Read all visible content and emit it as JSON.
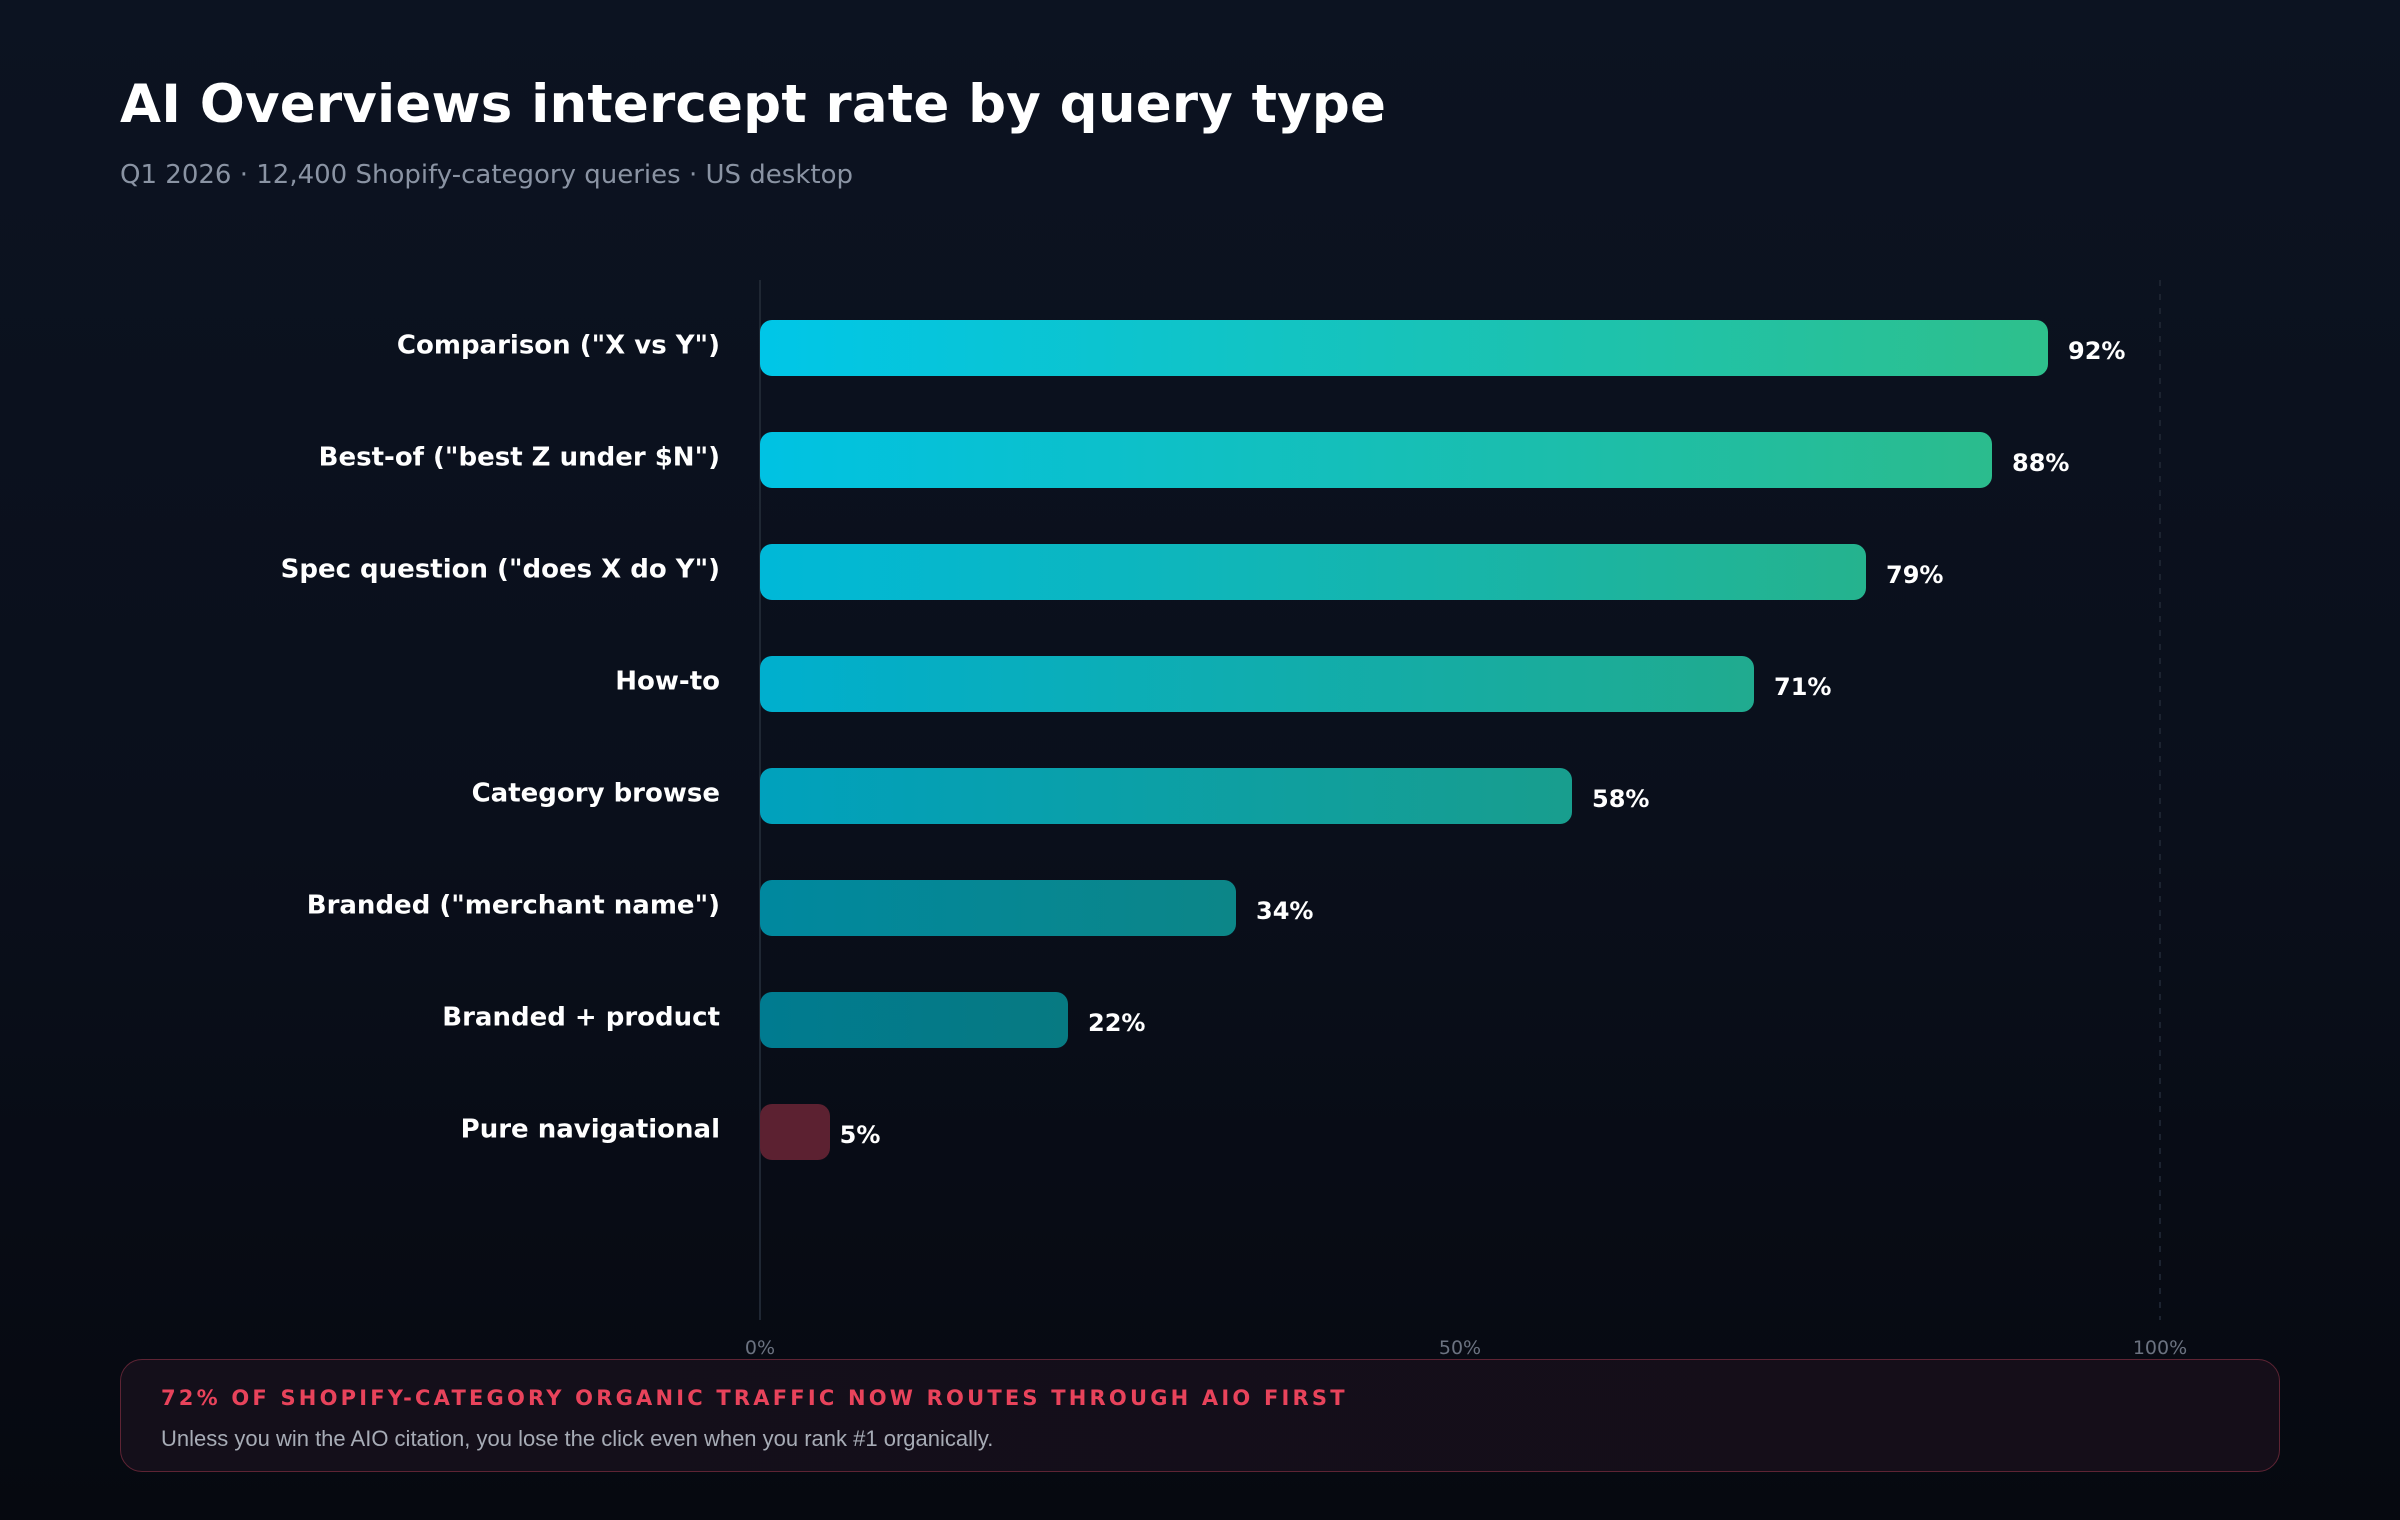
{
  "header": {
    "title": "AI Overviews intercept rate by query type",
    "subtitle": "Q1 2026 · 12,400 Shopify-category queries · US desktop"
  },
  "chart_data": {
    "type": "bar",
    "orientation": "horizontal",
    "categories": [
      "Comparison (\"X vs Y\")",
      "Best-of (\"best Z under $N\")",
      "Spec question (\"does X do Y\")",
      "How-to",
      "Category browse",
      "Branded (\"merchant name\")",
      "Branded + product",
      "Pure navigational"
    ],
    "values": [
      92,
      88,
      79,
      71,
      58,
      34,
      22,
      5
    ],
    "value_labels": [
      "92%",
      "88%",
      "79%",
      "71%",
      "58%",
      "34%",
      "22%",
      "5%"
    ],
    "xlim": [
      0,
      100
    ],
    "x_ticks": [
      0,
      50,
      100
    ],
    "x_tick_labels": [
      "0%",
      "50%",
      "100%"
    ],
    "grid": "vertical guides at 0% and 100%",
    "colors": {
      "bar_start": "#00c6e8",
      "bar_end": "#2ec08c",
      "low_value_bar": "#5c2131",
      "category_label": "#ffffff",
      "value_label": "#ffffff",
      "tick_label": "#6b7280"
    }
  },
  "callout": {
    "headline": "72% OF SHOPIFY-CATEGORY ORGANIC TRAFFIC NOW ROUTES THROUGH AIO FIRST",
    "body": "Unless you win the AIO citation, you lose the click even when you rank #1 organically.",
    "accent_color": "#e8435b"
  }
}
